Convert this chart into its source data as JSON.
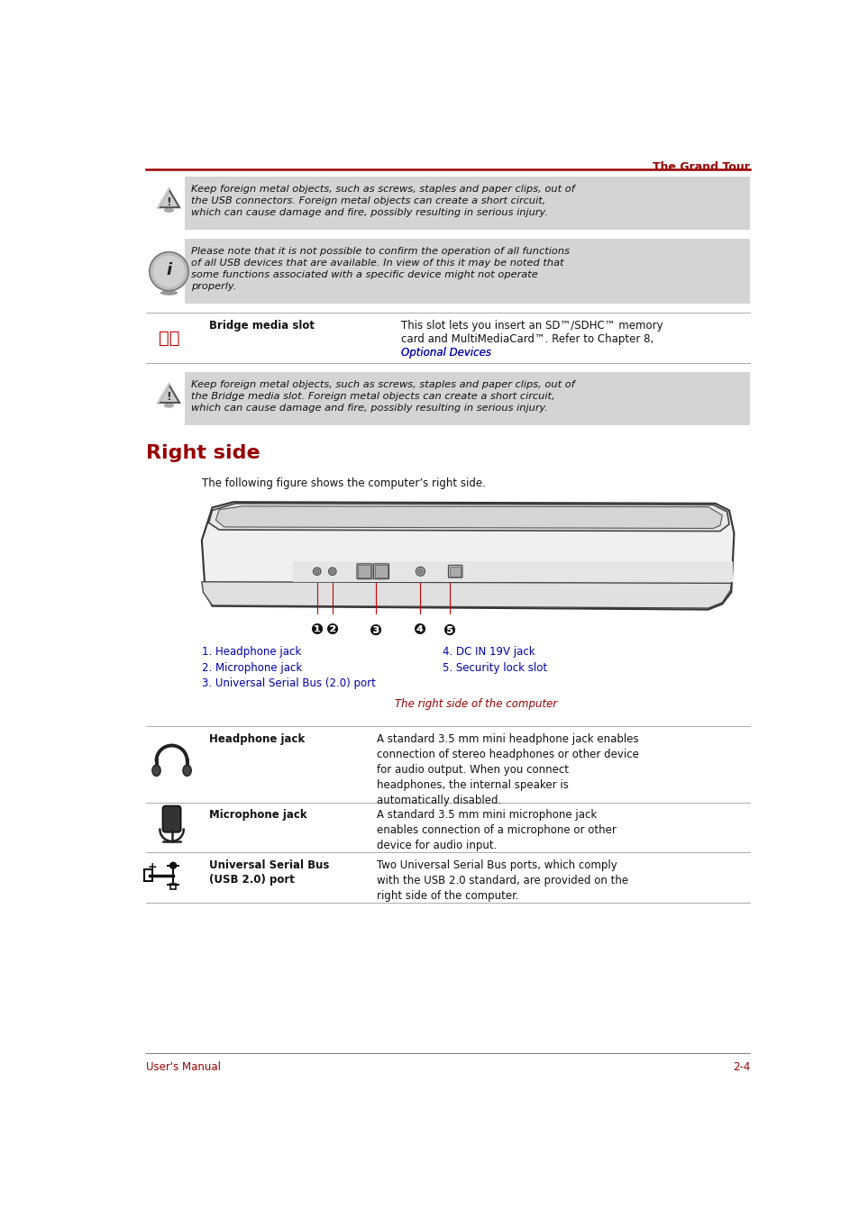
{
  "title_header": "The Grand Tour",
  "footer_left": "User's Manual",
  "footer_right": "2-4",
  "accent_color": "#990000",
  "bg_color": "#ffffff",
  "page_width": 9.54,
  "page_height": 13.52,
  "warning_bg": "#d4d4d4",
  "section_title": "Right side",
  "section_intro": "The following figure shows the computer’s right side.",
  "figure_caption": "The right side of the computer",
  "warning1_text": "Keep foreign metal objects, such as screws, staples and paper clips, out of\nthe USB connectors. Foreign metal objects can create a short circuit,\nwhich can cause damage and fire, possibly resulting in serious injury.",
  "info_text": "Please note that it is not possible to confirm the operation of all functions\nof all USB devices that are available. In view of this it may be noted that\nsome functions associated with a specific device might not operate\nproperly.",
  "bridge_label": "Bridge media slot",
  "bridge_desc1": "This slot lets you insert an SD™/SDHC™ memory",
  "bridge_desc2": "card and MultiMediaCard™. Refer to Chapter 8,",
  "bridge_desc3": "Optional Devices",
  "bridge_desc3b": ".",
  "warning2_text": "Keep foreign metal objects, such as screws, staples and paper clips, out of\nthe Bridge media slot. Foreign metal objects can create a short circuit,\nwhich can cause damage and fire, possibly resulting in serious injury.",
  "labels_left": [
    "1. Headphone jack",
    "2. Microphone jack",
    "3. Universal Serial Bus (2.0) port"
  ],
  "labels_right": [
    "4. DC IN 19V jack",
    "5. Security lock slot"
  ],
  "hw_items": [
    {
      "icon": "headphone",
      "label": "Headphone jack",
      "desc": "A standard 3.5 mm mini headphone jack enables\nconnection of stereo headphones or other device\nfor audio output. When you connect\nheadphones, the internal speaker is\nautomatically disabled."
    },
    {
      "icon": "microphone",
      "label": "Microphone jack",
      "desc": "A standard 3.5 mm mini microphone jack\nenables connection of a microphone or other\ndevice for audio input."
    },
    {
      "icon": "usb",
      "label": "Universal Serial Bus\n(USB 2.0) port",
      "desc": "Two Universal Serial Bus ports, which comply\nwith the USB 2.0 standard, are provided on the\nright side of the computer."
    }
  ]
}
